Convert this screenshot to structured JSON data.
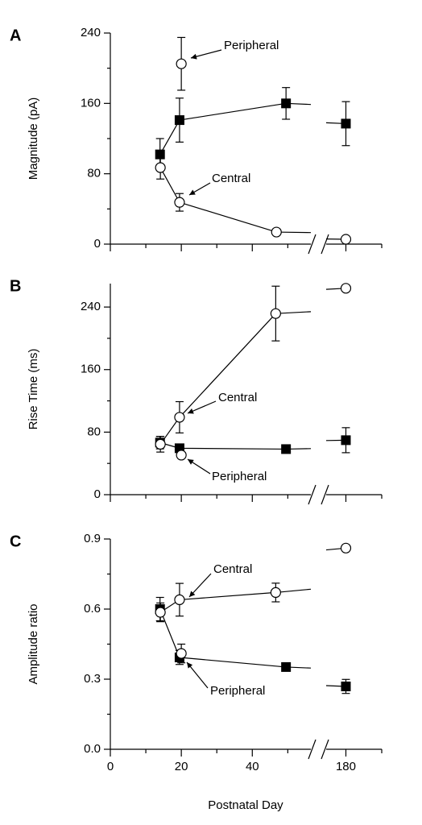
{
  "chart_data": [
    {
      "type": "line",
      "panel": "A",
      "ylabel": "Magnitude (pA)",
      "xlim": [
        0,
        56.5
      ],
      "x2lim": [
        174.5,
        190
      ],
      "xticks": [
        0,
        20,
        40
      ],
      "xminor": [
        10,
        30,
        50
      ],
      "x2ticks": [
        180
      ],
      "x2minor": [
        190
      ],
      "ylim": [
        0,
        240
      ],
      "yticks": [
        0,
        80,
        160,
        240
      ],
      "yminor": [
        40,
        120,
        200
      ],
      "series": [
        {
          "marker": "square",
          "line": true,
          "x": [
            14,
            19.5,
            49.5,
            180
          ],
          "values": [
            102,
            141,
            160,
            137
          ],
          "errors": [
            18,
            25,
            18,
            25
          ]
        },
        {
          "marker": "circle",
          "line": true,
          "x": [
            14.1,
            19.5,
            46.8,
            180
          ],
          "values": [
            87,
            47.5,
            13.7,
            5.5
          ],
          "errors": [
            13,
            10,
            null,
            null
          ]
        },
        {
          "marker": "circle",
          "line": false,
          "x": [
            20
          ],
          "values": [
            205
          ],
          "errors": [
            30
          ]
        }
      ],
      "annotations": [
        {
          "text": "Peripheral"
        },
        {
          "text": "Central"
        }
      ]
    },
    {
      "type": "line",
      "panel": "B",
      "ylabel": "Rise Time (ms)",
      "xlim": [
        0,
        56.5
      ],
      "x2lim": [
        174.5,
        190
      ],
      "xticks": [
        0,
        20,
        40
      ],
      "xminor": [
        10,
        30,
        50
      ],
      "x2ticks": [
        180
      ],
      "x2minor": [
        190
      ],
      "ylim": [
        0,
        270
      ],
      "yticks": [
        0,
        80,
        160,
        240
      ],
      "yminor": [
        40,
        120,
        200
      ],
      "series": [
        {
          "marker": "square",
          "line": true,
          "x": [
            14,
            19.5,
            49.5,
            180
          ],
          "values": [
            66.6,
            59.4,
            58.3,
            69.7
          ],
          "errors": [
            8,
            null,
            null,
            16
          ]
        },
        {
          "marker": "circle",
          "line": true,
          "x": [
            14.1,
            19.5,
            46.6,
            180
          ],
          "values": [
            64.5,
            99,
            231.7,
            264
          ],
          "errors": [
            10,
            20,
            35,
            null
          ]
        },
        {
          "marker": "circle",
          "line": false,
          "x": [
            20
          ],
          "values": [
            50.6
          ],
          "errors": [
            null
          ]
        }
      ],
      "annotations": [
        {
          "text": "Central"
        },
        {
          "text": "Peripheral"
        }
      ]
    },
    {
      "type": "line",
      "panel": "C",
      "ylabel": "Amplitude ratio",
      "xlabel": "Postnatal Day",
      "xlim": [
        0,
        56.5
      ],
      "x2lim": [
        174.5,
        190
      ],
      "xticks": [
        0,
        20,
        40
      ],
      "xminor": [
        10,
        30,
        50
      ],
      "x2ticks": [
        180
      ],
      "x2minor": [
        190
      ],
      "ylim": [
        0,
        0.9
      ],
      "yticks": [
        {
          "value": 0,
          "label": "0.0"
        },
        0.3,
        0.6,
        0.9
      ],
      "yminor": [
        0.15,
        0.45,
        0.75
      ],
      "series": [
        {
          "marker": "square",
          "line": true,
          "x": [
            14,
            19.5,
            49.5,
            180
          ],
          "values": [
            0.6,
            0.393,
            0.352,
            0.269
          ],
          "errors": [
            0.05,
            0.03,
            null,
            0.03
          ]
        },
        {
          "marker": "circle",
          "line": true,
          "x": [
            14.1,
            19.5,
            46.6,
            180
          ],
          "values": [
            0.586,
            0.64,
            0.671,
            0.861
          ],
          "errors": [
            0.04,
            0.07,
            0.04,
            null
          ]
        },
        {
          "marker": "circle",
          "line": false,
          "x": [
            20
          ],
          "values": [
            0.41
          ],
          "errors": [
            0.04
          ]
        }
      ],
      "annotations": [
        {
          "text": "Central"
        },
        {
          "text": "Peripheral"
        }
      ]
    }
  ]
}
